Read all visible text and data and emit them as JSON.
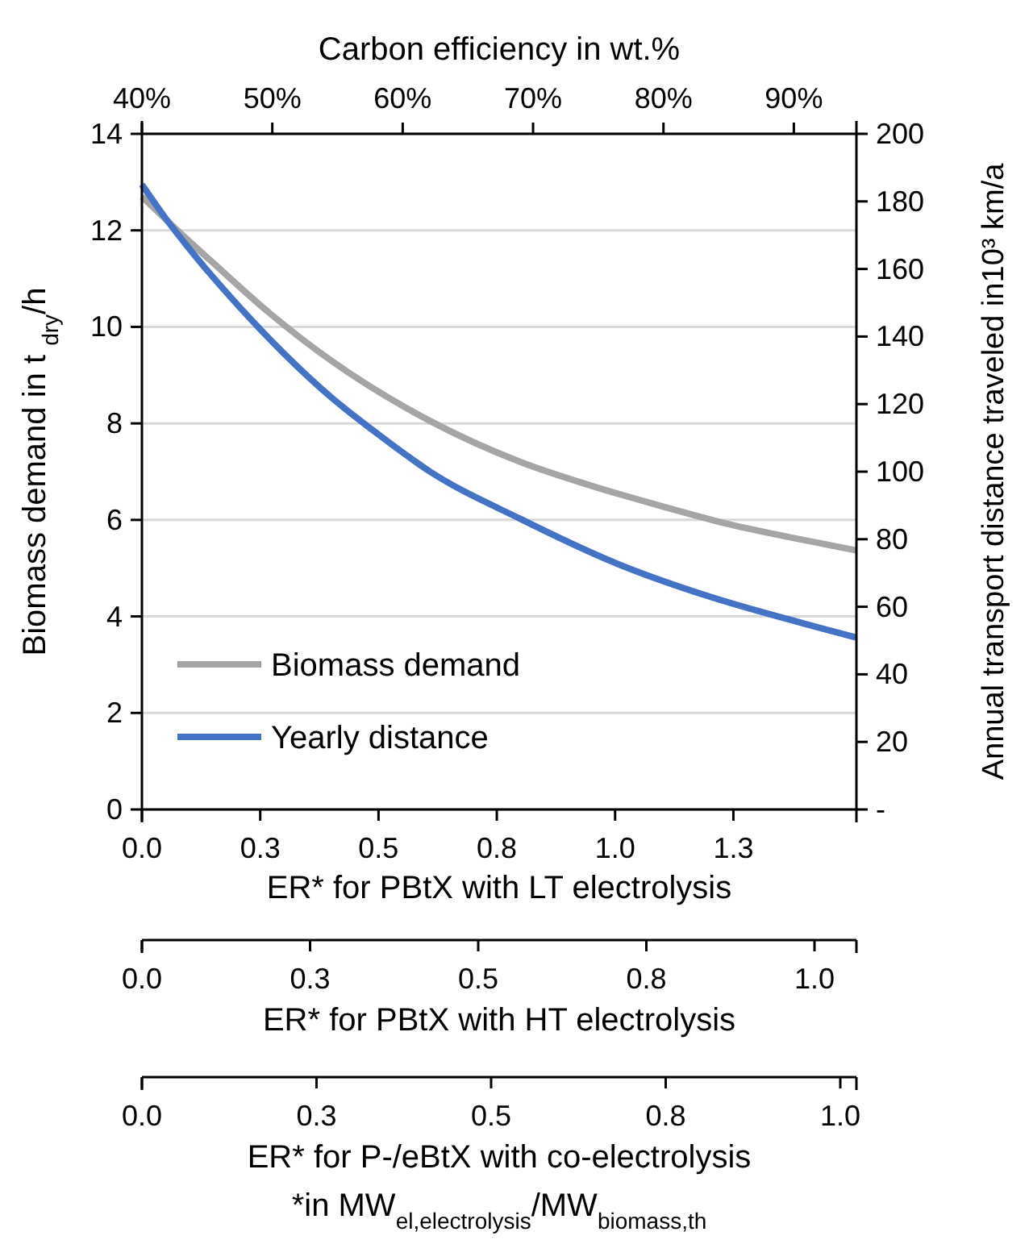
{
  "chart_data": [
    {
      "type": "line",
      "xlabel": "ER* for PBtX with LT electrolysis",
      "ylabel": "Biomass demand in t $_{dry}$/h",
      "y2label": "Annual transport distance traveled in10³ km/a",
      "x2label": "Carbon efficiency in wt.%",
      "xlim": [
        0,
        1.51
      ],
      "xticks": [
        {
          "value": 0,
          "label": "0.0"
        },
        {
          "value": 0.25,
          "label": "0.3"
        },
        {
          "value": 0.5,
          "label": "0.5"
        },
        {
          "value": 0.75,
          "label": "0.8"
        },
        {
          "value": 1,
          "label": "1.0"
        },
        {
          "value": 1.25,
          "label": "1.3"
        }
      ],
      "x2lim": [
        40,
        94.8
      ],
      "x2ticks": [
        {
          "value": 40,
          "label": "40%"
        },
        {
          "value": 50,
          "label": "50%"
        },
        {
          "value": 60,
          "label": "60%"
        },
        {
          "value": 70,
          "label": "70%"
        },
        {
          "value": 80,
          "label": "80%"
        },
        {
          "value": 90,
          "label": "90%"
        }
      ],
      "ylim": [
        0,
        14
      ],
      "yticks": [
        0,
        2,
        4,
        6,
        8,
        10,
        12,
        14
      ],
      "y2lim": [
        0,
        200
      ],
      "y2ticks": [
        {
          "value": 0,
          "label": "-"
        },
        20,
        40,
        60,
        80,
        100,
        120,
        140,
        160,
        180,
        200
      ],
      "grid": "y",
      "legend": "bottom left",
      "line_style": "solid",
      "series": [
        {
          "name": "Biomass demand",
          "color": "#a5a5a5",
          "x": [
            0,
            0.075,
            0.15,
            0.268,
            0.4,
            0.609,
            0.8,
            0.949,
            1.1,
            1.233,
            1.38,
            1.509
          ],
          "values": [
            12.7,
            12.0,
            11.33,
            10.3,
            9.3,
            8.05,
            7.2,
            6.71,
            6.28,
            5.93,
            5.62,
            5.37
          ]
        },
        {
          "name": "Yearly distance",
          "color": "#4472c4",
          "axis": "y2",
          "x": [
            0,
            0.05,
            0.1,
            0.211,
            0.3,
            0.4,
            0.5,
            0.609,
            0.8,
            1.0,
            1.2,
            1.4,
            1.509
          ],
          "values": [
            185,
            175,
            166,
            148,
            135,
            122,
            111,
            100,
            86,
            73,
            63,
            55,
            50.9
          ]
        }
      ]
    },
    {
      "type": "other",
      "xlabel": "ER* for PBtX with HT electrolysis",
      "categories": [
        "0.0",
        "0.3",
        "0.5",
        "0.8",
        "1.0"
      ]
    },
    {
      "type": "other",
      "xlabel": "ER* for P-/eBtX with co-electrolysis",
      "categories": [
        "0.0",
        "0.3",
        "0.5",
        "0.8",
        "1.0"
      ],
      "annotations": [
        "*in MW$_{el,electrolysis}$/MW$_{biomass,th}$"
      ]
    }
  ]
}
